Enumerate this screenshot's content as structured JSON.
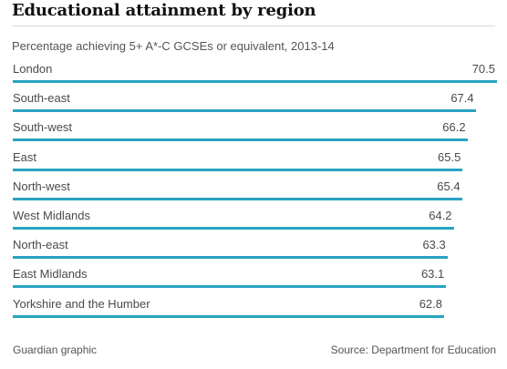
{
  "chart_data": {
    "type": "bar",
    "orientation": "horizontal",
    "title": "Educational attainment by region",
    "subtitle": "Percentage achieving 5+ A*-C GCSEs or equivalent, 2013-14",
    "categories": [
      "London",
      "South-east",
      "South-west",
      "East",
      "North-west",
      "West Midlands",
      "North-east",
      "East Midlands",
      "Yorkshire and the Humber"
    ],
    "values": [
      70.5,
      67.4,
      66.2,
      65.5,
      65.4,
      64.2,
      63.3,
      63.1,
      62.8
    ],
    "value_labels": [
      "70.5",
      "67.4",
      "66.2",
      "65.5",
      "65.4",
      "64.2",
      "63.3",
      "63.1",
      "62.8"
    ],
    "xlim": [
      0,
      70.5
    ],
    "bar_color": "#2aa3c3",
    "grid": false,
    "legend": "none"
  },
  "footer": {
    "credit": "Guardian graphic",
    "source": "Source: Department for Education"
  }
}
